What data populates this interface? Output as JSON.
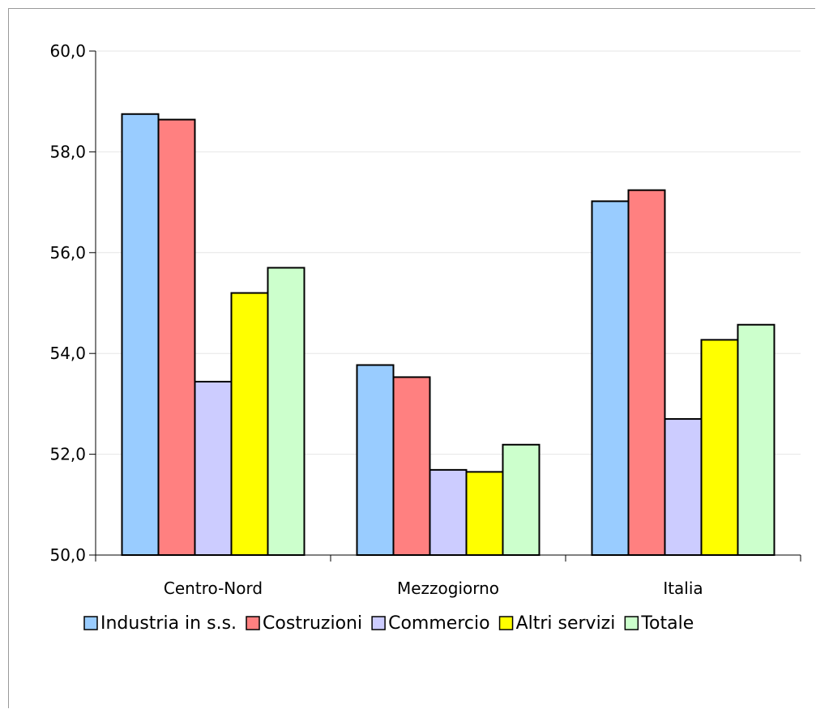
{
  "chart_data": {
    "type": "bar",
    "title": "",
    "xlabel": "",
    "ylabel": "",
    "categories": [
      "Centro-Nord",
      "Mezzogiorno",
      "Italia"
    ],
    "series": [
      {
        "name": "Industria in s.s.",
        "color": "#99CCFF",
        "values": [
          58.75,
          53.77,
          57.02
        ]
      },
      {
        "name": "Costruzioni",
        "color": "#FF8080",
        "values": [
          58.64,
          53.53,
          57.24
        ]
      },
      {
        "name": "Commercio",
        "color": "#CCCCFF",
        "values": [
          53.44,
          51.69,
          52.7
        ]
      },
      {
        "name": "Altri servizi",
        "color": "#FFFF00",
        "values": [
          55.2,
          51.65,
          54.27
        ]
      },
      {
        "name": "Totale",
        "color": "#CCFFCC",
        "values": [
          55.7,
          52.19,
          54.57
        ]
      }
    ],
    "ylim": [
      50,
      60
    ],
    "yticks": [
      50,
      52,
      54,
      56,
      58,
      60
    ],
    "ytick_labels": [
      "50,0",
      "52,0",
      "54,0",
      "56,0",
      "58,0",
      "60,0"
    ],
    "grid": true,
    "legend_position": "bottom"
  }
}
